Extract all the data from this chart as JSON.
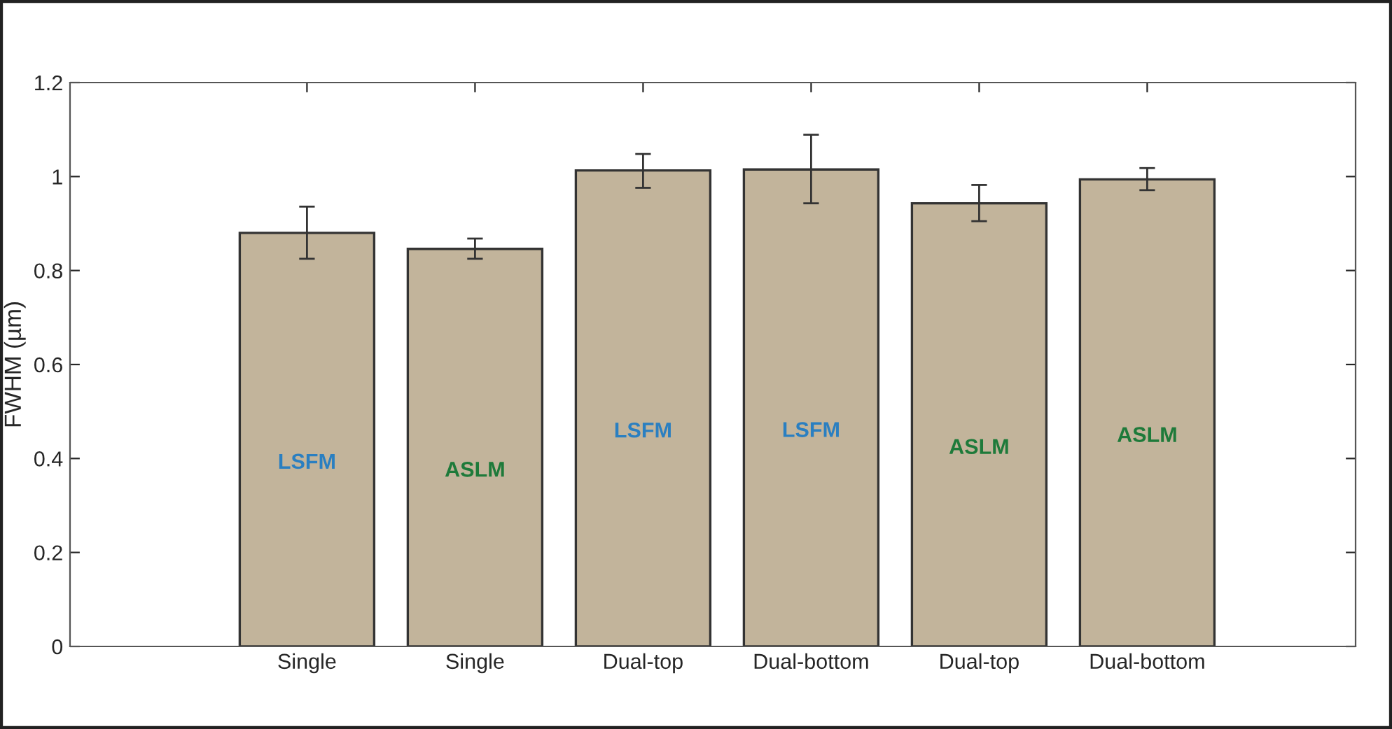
{
  "chart_data": {
    "type": "bar",
    "ylabel": "FWHM (µm)",
    "categories": [
      "Single",
      "Single",
      "Dual-top",
      "Dual-bottom",
      "Dual-top",
      "Dual-bottom"
    ],
    "values": [
      0.88,
      0.846,
      1.013,
      1.015,
      0.943,
      0.994
    ],
    "errors": [
      [
        0.825,
        0.936
      ],
      [
        0.825,
        0.868
      ],
      [
        0.976,
        1.048
      ],
      [
        0.943,
        1.089
      ],
      [
        0.905,
        0.982
      ],
      [
        0.971,
        1.018
      ]
    ],
    "color": "#c2b49b",
    "ylim": [
      0,
      1.2
    ],
    "yticks": [
      0,
      0.2,
      0.4,
      0.6,
      0.8,
      1,
      1.2
    ],
    "annotations": [
      "LSFM",
      "ASLM",
      "LSFM",
      "LSFM",
      "ASLM",
      "ASLM"
    ]
  }
}
